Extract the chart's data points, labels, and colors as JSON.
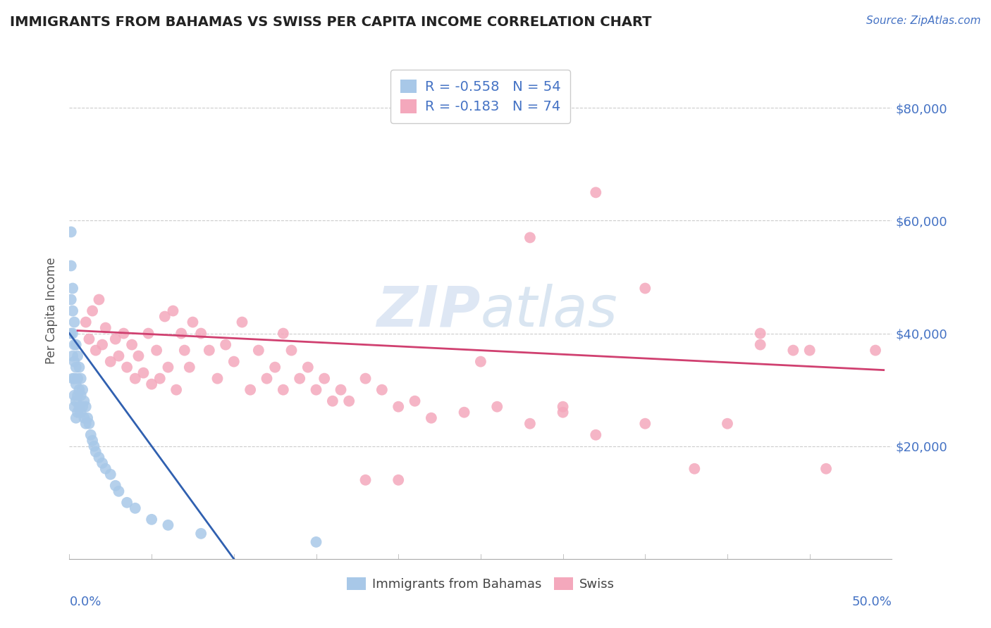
{
  "title": "IMMIGRANTS FROM BAHAMAS VS SWISS PER CAPITA INCOME CORRELATION CHART",
  "source": "Source: ZipAtlas.com",
  "ylabel": "Per Capita Income",
  "xlim": [
    0.0,
    0.5
  ],
  "ylim": [
    0,
    88000
  ],
  "yticks": [
    20000,
    40000,
    60000,
    80000
  ],
  "ytick_labels": [
    "$20,000",
    "$40,000",
    "$60,000",
    "$80,000"
  ],
  "xtick_left_label": "0.0%",
  "xtick_right_label": "50.0%",
  "blue_R": -0.558,
  "blue_N": 54,
  "pink_R": -0.183,
  "pink_N": 74,
  "blue_dot_color": "#a8c8e8",
  "pink_dot_color": "#f4a8bc",
  "blue_line_color": "#3060b0",
  "pink_line_color": "#d04070",
  "title_color": "#222222",
  "axis_label_color": "#555555",
  "tick_color": "#4472C4",
  "background_color": "#ffffff",
  "grid_color": "#cccccc",
  "blue_scatter_x": [
    0.001,
    0.001,
    0.001,
    0.001,
    0.002,
    0.002,
    0.002,
    0.002,
    0.002,
    0.003,
    0.003,
    0.003,
    0.003,
    0.003,
    0.003,
    0.004,
    0.004,
    0.004,
    0.004,
    0.004,
    0.005,
    0.005,
    0.005,
    0.005,
    0.006,
    0.006,
    0.006,
    0.007,
    0.007,
    0.007,
    0.008,
    0.008,
    0.009,
    0.009,
    0.01,
    0.01,
    0.011,
    0.012,
    0.013,
    0.014,
    0.015,
    0.016,
    0.018,
    0.02,
    0.022,
    0.025,
    0.028,
    0.03,
    0.035,
    0.04,
    0.05,
    0.06,
    0.08,
    0.15
  ],
  "blue_scatter_y": [
    58000,
    52000,
    46000,
    40000,
    48000,
    44000,
    40000,
    36000,
    32000,
    42000,
    38000,
    35000,
    32000,
    29000,
    27000,
    38000,
    34000,
    31000,
    28000,
    25000,
    36000,
    32000,
    29000,
    26000,
    34000,
    30000,
    27000,
    32000,
    29000,
    26000,
    30000,
    27000,
    28000,
    25000,
    27000,
    24000,
    25000,
    24000,
    22000,
    21000,
    20000,
    19000,
    18000,
    17000,
    16000,
    15000,
    13000,
    12000,
    10000,
    9000,
    7000,
    6000,
    4500,
    3000
  ],
  "pink_scatter_x": [
    0.01,
    0.012,
    0.014,
    0.016,
    0.018,
    0.02,
    0.022,
    0.025,
    0.028,
    0.03,
    0.033,
    0.035,
    0.038,
    0.04,
    0.042,
    0.045,
    0.048,
    0.05,
    0.053,
    0.055,
    0.058,
    0.06,
    0.063,
    0.065,
    0.068,
    0.07,
    0.073,
    0.075,
    0.08,
    0.085,
    0.09,
    0.095,
    0.1,
    0.105,
    0.11,
    0.115,
    0.12,
    0.125,
    0.13,
    0.135,
    0.14,
    0.145,
    0.15,
    0.155,
    0.16,
    0.165,
    0.17,
    0.18,
    0.19,
    0.2,
    0.21,
    0.22,
    0.24,
    0.26,
    0.28,
    0.3,
    0.32,
    0.35,
    0.38,
    0.4,
    0.42,
    0.44,
    0.46,
    0.49,
    0.32,
    0.2,
    0.28,
    0.35,
    0.42,
    0.45,
    0.3,
    0.25,
    0.18,
    0.13
  ],
  "pink_scatter_y": [
    42000,
    39000,
    44000,
    37000,
    46000,
    38000,
    41000,
    35000,
    39000,
    36000,
    40000,
    34000,
    38000,
    32000,
    36000,
    33000,
    40000,
    31000,
    37000,
    32000,
    43000,
    34000,
    44000,
    30000,
    40000,
    37000,
    34000,
    42000,
    40000,
    37000,
    32000,
    38000,
    35000,
    42000,
    30000,
    37000,
    32000,
    34000,
    30000,
    37000,
    32000,
    34000,
    30000,
    32000,
    28000,
    30000,
    28000,
    32000,
    30000,
    27000,
    28000,
    25000,
    26000,
    27000,
    24000,
    26000,
    22000,
    24000,
    16000,
    24000,
    38000,
    37000,
    16000,
    37000,
    65000,
    14000,
    57000,
    48000,
    40000,
    37000,
    27000,
    35000,
    14000,
    40000
  ]
}
